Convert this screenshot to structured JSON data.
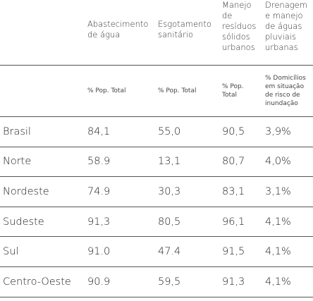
{
  "table": {
    "header": [
      "Abastecimento de água",
      "Esgotamento sanitário",
      "Manejo de resíduos sólidos urbanos",
      "Drenagem e manejo de águas pluviais urbanas"
    ],
    "units": [
      "% Pop. Total",
      "% Pop. Total",
      "% Pop. Total",
      "% Domicílios em situação de risco de inundação"
    ],
    "rows": [
      [
        "Brasil",
        "84,1",
        "55,0",
        "90,5",
        "3,9%"
      ],
      [
        "Norte",
        "58.9",
        "13,1",
        "80,7",
        "4,0%"
      ],
      [
        "Nordeste",
        "74.9",
        "30,3",
        "83,1",
        "3,1%"
      ],
      [
        "Sudeste",
        "91,3",
        "80,5",
        "96,1",
        "4,1%"
      ],
      [
        "Sul",
        "91.0",
        "47.4",
        "91,5",
        "4,1%"
      ],
      [
        "Centro-Oeste",
        "90.9",
        "59,5",
        "91,3",
        "4,1%"
      ]
    ]
  }
}
